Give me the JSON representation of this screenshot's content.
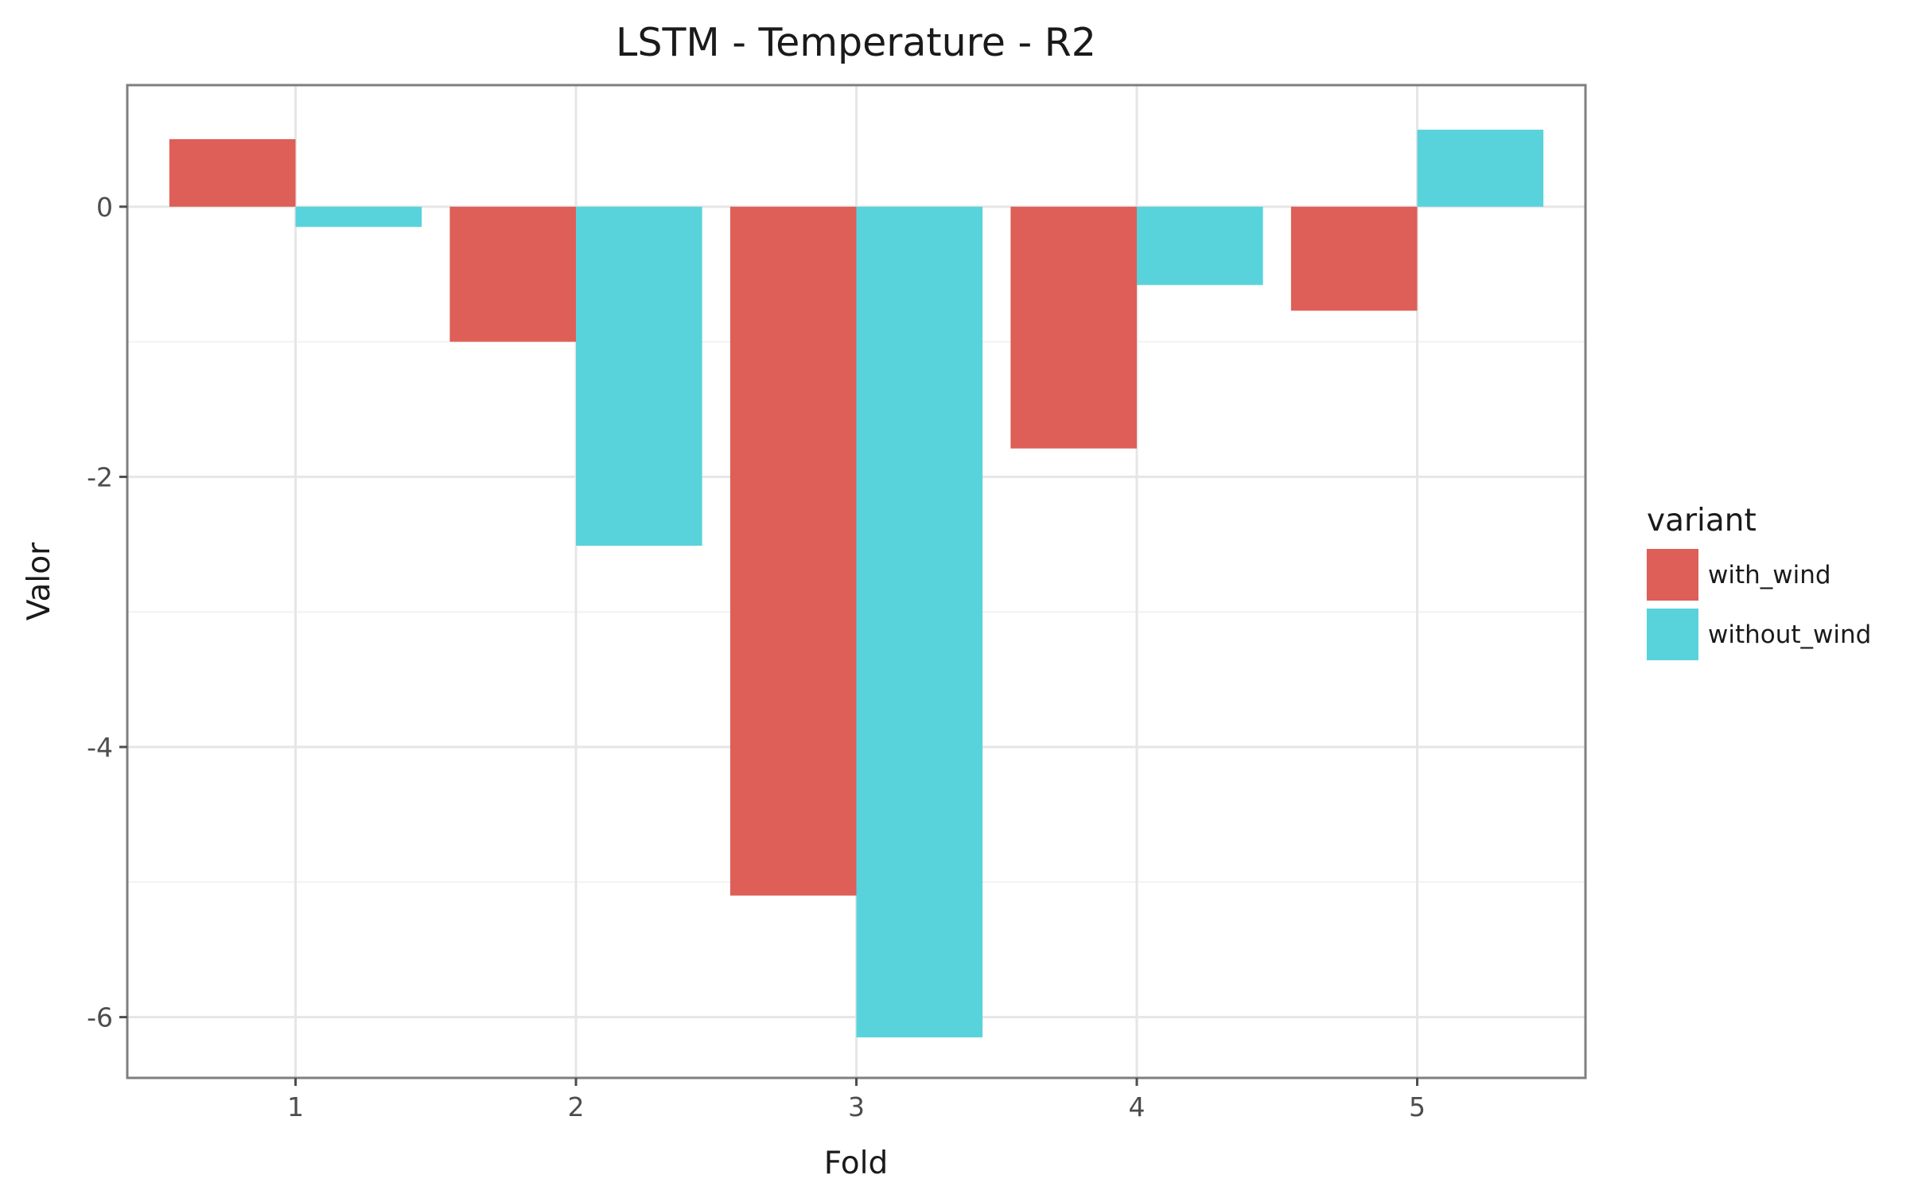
{
  "chart_data": {
    "type": "bar",
    "title": "LSTM - Temperature - R2",
    "xlabel": "Fold",
    "ylabel": "Valor",
    "categories": [
      "1",
      "2",
      "3",
      "4",
      "5"
    ],
    "series": [
      {
        "name": "with_wind",
        "color": "#dd5f57",
        "values": [
          0.5,
          -1.0,
          -5.1,
          -1.79,
          -0.77
        ]
      },
      {
        "name": "without_wind",
        "color": "#59d3db",
        "values": [
          -0.15,
          -2.51,
          -6.15,
          -0.58,
          0.57
        ]
      }
    ],
    "ylim": [
      -6.45,
      0.9
    ],
    "yticks": [
      0,
      -2,
      -4,
      -6
    ],
    "ytick_labels": [
      "0",
      "-2",
      "-4",
      "-6"
    ],
    "grid": true,
    "legend": {
      "title": "variant",
      "position": "right"
    }
  }
}
